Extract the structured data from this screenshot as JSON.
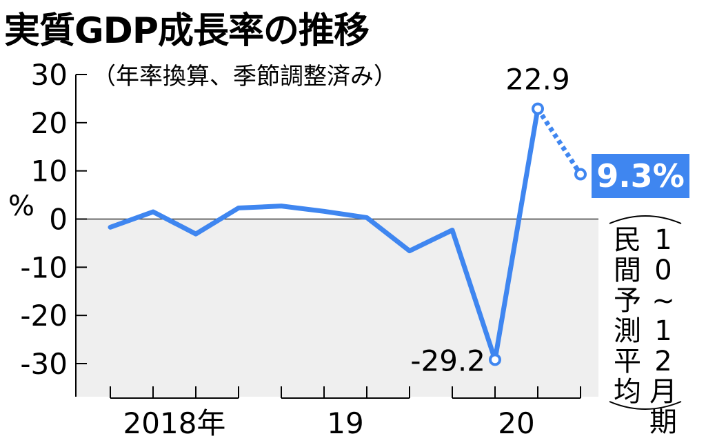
{
  "title": "実質GDP成長率の推移",
  "subtitle": "（年率換算、季節調整済み）",
  "callout": {
    "value": "9.3%",
    "note_col1": "民間予測平均",
    "note_col2": "10~12月期"
  },
  "colors": {
    "line": "#3f86f0",
    "negative_area": "#efefef",
    "callout_bg": "#3f86f0"
  },
  "chart_data": {
    "type": "line",
    "ylabel": "%",
    "ylim": [
      -30,
      30
    ],
    "yticks": [
      "30",
      "20",
      "10",
      "0",
      "-10",
      "-20",
      "-30"
    ],
    "ytick_values": [
      30,
      20,
      10,
      0,
      -10,
      -20,
      -30
    ],
    "year_labels": [
      "2018年",
      "19",
      "20"
    ],
    "quarters": [
      "2018Q1",
      "2018Q2",
      "2018Q3",
      "2018Q4",
      "2019Q1",
      "2019Q2",
      "2019Q3",
      "2019Q4",
      "2020Q1",
      "2020Q2",
      "2020Q3",
      "2020Q4"
    ],
    "series": [
      {
        "values": [
          -1.7,
          1.5,
          -3.1,
          2.3,
          2.7,
          1.6,
          0.3,
          -6.6,
          -2.3,
          -29.2,
          22.9,
          null
        ]
      },
      {
        "values": [
          null,
          null,
          null,
          null,
          null,
          null,
          null,
          null,
          null,
          null,
          22.9,
          9.3
        ],
        "style": "dashed"
      }
    ],
    "annotations": [
      {
        "quarter": "2020Q2",
        "value": -29.2,
        "label": "-29.2"
      },
      {
        "quarter": "2020Q3",
        "value": 22.9,
        "label": "22.9"
      }
    ],
    "grid": false
  }
}
